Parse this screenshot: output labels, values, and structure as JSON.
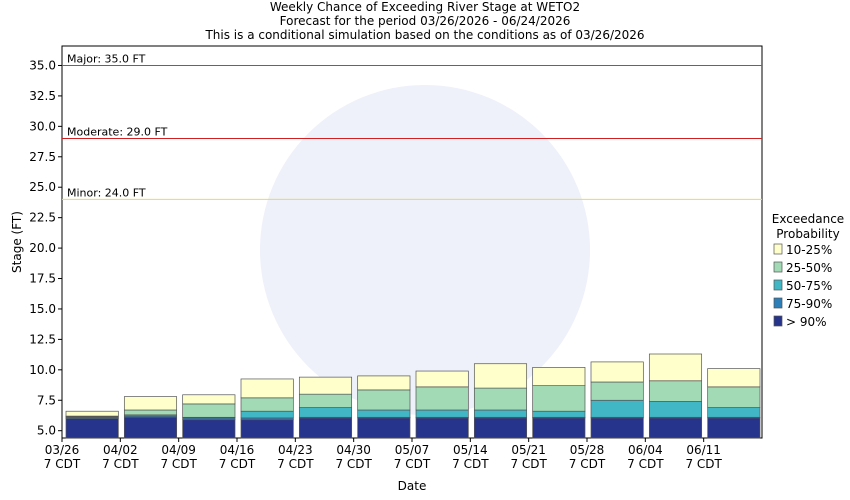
{
  "chart_data": {
    "type": "range_bar",
    "title": "Weekly Chance of Exceeding River Stage at WETO2",
    "subtitle": "Forecast for the period 03/26/2026 - 06/24/2026",
    "note": "This is a conditional simulation based on the conditions as of 03/26/2026",
    "x_label": "Date",
    "y_label": "Stage (FT)",
    "legend_title": "Exceedance Probability",
    "categories": [
      "03/26",
      "04/02",
      "04/09",
      "04/16",
      "04/23",
      "04/30",
      "05/07",
      "05/14",
      "05/21",
      "05/28",
      "06/04",
      "06/11"
    ],
    "x_sublabel": "7 CDT",
    "series": [
      {
        "name": "> 90%",
        "color": "#27348b",
        "values": [
          6.0,
          6.1,
          5.9,
          5.9,
          6.05,
          6.05,
          6.05,
          6.05,
          6.05,
          6.05,
          6.05,
          6.05
        ]
      },
      {
        "name": "75-90%",
        "color": "#2c7fb8",
        "values": [
          6.1,
          6.2,
          6.05,
          6.05,
          6.1,
          6.1,
          6.1,
          6.1,
          6.1,
          6.1,
          6.1,
          6.1
        ]
      },
      {
        "name": "50-75%",
        "color": "#41b6c4",
        "values": [
          6.15,
          6.3,
          6.1,
          6.6,
          6.9,
          6.7,
          6.7,
          6.7,
          6.6,
          7.5,
          7.4,
          6.9
        ]
      },
      {
        "name": "25-50%",
        "color": "#a1dab4",
        "values": [
          6.2,
          6.7,
          7.2,
          7.7,
          8.0,
          8.35,
          8.6,
          8.5,
          8.7,
          9.0,
          9.1,
          8.6
        ]
      },
      {
        "name": "10-25%",
        "color": "#ffffcc",
        "values": [
          6.6,
          7.8,
          7.95,
          9.25,
          9.4,
          9.5,
          9.9,
          10.5,
          10.2,
          10.65,
          11.3,
          10.1
        ]
      }
    ],
    "thresholds": [
      {
        "label": "Major: 35.0 FT",
        "value": 35.0,
        "color": "#b030b0"
      },
      {
        "label": "Moderate: 29.0 FT",
        "value": 29.0,
        "color": "#d02020"
      },
      {
        "label": "Minor: 24.0 FT",
        "value": 24.0,
        "color": "#e8e040"
      }
    ],
    "ylim": [
      4.4,
      36.6
    ],
    "yticks": [
      {
        "value": 5,
        "label": "5.0"
      },
      {
        "value": 7.5,
        "label": "7.5"
      },
      {
        "value": 10,
        "label": "10.0"
      },
      {
        "value": 12.5,
        "label": "12.5"
      },
      {
        "value": 15,
        "label": "15.0"
      },
      {
        "value": 17.5,
        "label": "17.5"
      },
      {
        "value": 20,
        "label": "20.0"
      },
      {
        "value": 22.5,
        "label": "22.5"
      },
      {
        "value": 25,
        "label": "25.0"
      },
      {
        "value": 27.5,
        "label": "27.5"
      },
      {
        "value": 30,
        "label": "30.0"
      },
      {
        "value": 32.5,
        "label": "32.5"
      },
      {
        "value": 35,
        "label": "35.0"
      }
    ]
  }
}
